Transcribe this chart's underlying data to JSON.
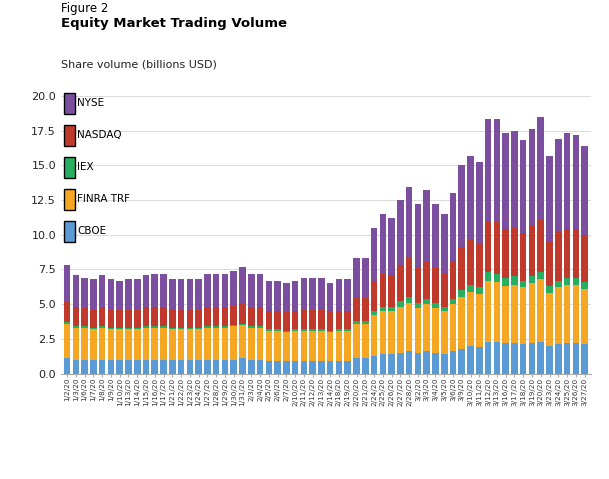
{
  "title_line1": "Figure 2",
  "title_line2": "Equity Market Trading Volume",
  "ylabel": "Share volume (billions USD)",
  "ylim": [
    0,
    20.0
  ],
  "yticks": [
    0,
    2.5,
    5.0,
    7.5,
    10.0,
    12.5,
    15.0,
    17.5,
    20.0
  ],
  "colors": {
    "NYSE": "#7B4EA0",
    "NASDAQ": "#C0392B",
    "IEX": "#27AE60",
    "FINRA TRF": "#F5A623",
    "CBOE": "#5B9BD5"
  },
  "dates": [
    "1/2/20",
    "1/3/20",
    "1/6/20",
    "1/7/20",
    "1/8/20",
    "1/9/20",
    "1/10/20",
    "1/13/20",
    "1/14/20",
    "1/15/20",
    "1/16/20",
    "1/17/20",
    "1/21/20",
    "1/22/20",
    "1/23/20",
    "1/24/20",
    "1/27/20",
    "1/28/20",
    "1/29/20",
    "1/30/20",
    "1/31/20",
    "2/3/20",
    "2/4/20",
    "2/5/20",
    "2/6/20",
    "2/7/20",
    "2/10/20",
    "2/11/20",
    "2/12/20",
    "2/13/20",
    "2/14/20",
    "2/18/20",
    "2/19/20",
    "2/20/20",
    "2/21/20",
    "2/24/20",
    "2/25/20",
    "2/26/20",
    "2/27/20",
    "2/28/20",
    "3/2/20",
    "3/3/20",
    "3/4/20",
    "3/5/20",
    "3/6/20",
    "3/9/20",
    "3/10/20",
    "3/11/20",
    "3/12/20",
    "3/13/20",
    "3/16/20",
    "3/17/20",
    "3/18/20",
    "3/19/20",
    "3/20/20",
    "3/23/20",
    "3/24/20",
    "3/25/20",
    "3/26/20",
    "3/27/20"
  ],
  "CBOE": [
    1.1,
    1.0,
    1.0,
    1.0,
    1.0,
    1.0,
    1.0,
    1.0,
    1.0,
    1.0,
    1.0,
    1.0,
    1.0,
    1.0,
    1.0,
    1.0,
    1.0,
    1.0,
    1.0,
    1.0,
    1.1,
    1.0,
    1.0,
    0.9,
    0.9,
    0.9,
    0.9,
    0.9,
    0.9,
    0.9,
    0.9,
    0.9,
    0.9,
    1.1,
    1.1,
    1.3,
    1.4,
    1.4,
    1.5,
    1.6,
    1.5,
    1.6,
    1.5,
    1.4,
    1.6,
    1.8,
    2.0,
    1.9,
    2.3,
    2.3,
    2.2,
    2.2,
    2.1,
    2.2,
    2.3,
    2.0,
    2.1,
    2.2,
    2.2,
    2.1
  ],
  "FINRA TRF": [
    2.5,
    2.3,
    2.3,
    2.2,
    2.3,
    2.2,
    2.2,
    2.2,
    2.2,
    2.3,
    2.3,
    2.3,
    2.2,
    2.2,
    2.2,
    2.2,
    2.3,
    2.3,
    2.3,
    2.4,
    2.4,
    2.3,
    2.3,
    2.2,
    2.2,
    2.1,
    2.2,
    2.2,
    2.2,
    2.2,
    2.1,
    2.2,
    2.2,
    2.5,
    2.5,
    2.9,
    3.1,
    3.1,
    3.3,
    3.5,
    3.2,
    3.4,
    3.2,
    3.1,
    3.4,
    3.7,
    3.9,
    3.8,
    4.4,
    4.3,
    4.1,
    4.2,
    4.1,
    4.3,
    4.5,
    3.8,
    4.1,
    4.2,
    4.2,
    4.0
  ],
  "IEX": [
    0.1,
    0.1,
    0.1,
    0.1,
    0.1,
    0.1,
    0.1,
    0.1,
    0.1,
    0.1,
    0.1,
    0.1,
    0.1,
    0.1,
    0.1,
    0.1,
    0.1,
    0.1,
    0.1,
    0.1,
    0.1,
    0.1,
    0.1,
    0.1,
    0.1,
    0.1,
    0.1,
    0.1,
    0.1,
    0.1,
    0.1,
    0.1,
    0.1,
    0.2,
    0.2,
    0.3,
    0.3,
    0.3,
    0.4,
    0.4,
    0.4,
    0.4,
    0.4,
    0.3,
    0.4,
    0.5,
    0.5,
    0.5,
    0.6,
    0.6,
    0.6,
    0.6,
    0.5,
    0.5,
    0.5,
    0.5,
    0.5,
    0.5,
    0.5,
    0.5
  ],
  "NASDAQ": [
    1.5,
    1.4,
    1.3,
    1.3,
    1.4,
    1.3,
    1.3,
    1.3,
    1.3,
    1.4,
    1.4,
    1.4,
    1.3,
    1.3,
    1.3,
    1.3,
    1.4,
    1.4,
    1.4,
    1.4,
    1.5,
    1.4,
    1.4,
    1.3,
    1.3,
    1.3,
    1.3,
    1.4,
    1.4,
    1.4,
    1.3,
    1.3,
    1.3,
    1.7,
    1.7,
    2.2,
    2.4,
    2.3,
    2.6,
    2.8,
    2.5,
    2.7,
    2.5,
    2.4,
    2.7,
    3.1,
    3.2,
    3.1,
    3.7,
    3.7,
    3.5,
    3.5,
    3.4,
    3.6,
    3.8,
    3.2,
    3.5,
    3.5,
    3.5,
    3.3
  ],
  "NYSE": [
    2.6,
    2.3,
    2.2,
    2.2,
    2.3,
    2.2,
    2.1,
    2.2,
    2.2,
    2.3,
    2.4,
    2.4,
    2.2,
    2.2,
    2.2,
    2.2,
    2.4,
    2.4,
    2.4,
    2.5,
    2.6,
    2.4,
    2.4,
    2.2,
    2.2,
    2.1,
    2.2,
    2.3,
    2.3,
    2.3,
    2.1,
    2.3,
    2.3,
    2.8,
    2.8,
    3.8,
    4.3,
    4.1,
    4.7,
    5.1,
    4.6,
    5.1,
    4.6,
    4.3,
    4.9,
    5.9,
    6.1,
    5.9,
    7.3,
    7.4,
    6.9,
    7.0,
    6.7,
    7.0,
    7.4,
    6.2,
    6.7,
    6.9,
    6.8,
    6.5
  ],
  "legend_items": [
    [
      "NYSE",
      "#7B4EA0"
    ],
    [
      "NASDAQ",
      "#C0392B"
    ],
    [
      "IEX",
      "#27AE60"
    ],
    [
      "FINRA TRF",
      "#F5A623"
    ],
    [
      "CBOE",
      "#5B9BD5"
    ]
  ],
  "fig_width": 6.09,
  "fig_height": 4.79,
  "dpi": 100
}
